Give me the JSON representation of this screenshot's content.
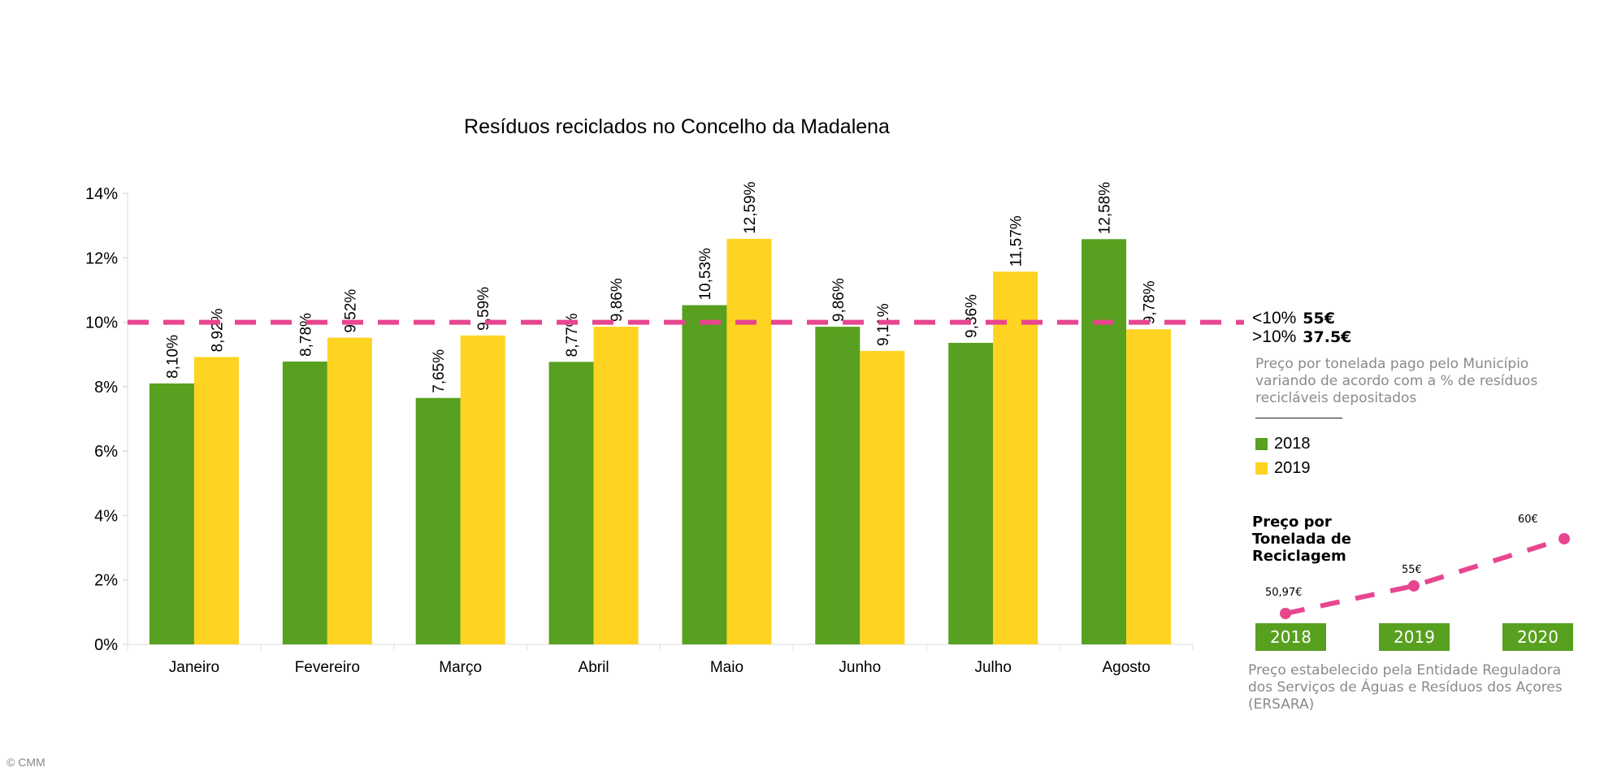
{
  "chart_data": {
    "type": "bar",
    "title": "Resíduos reciclados no Concelho da Madalena",
    "categories": [
      "Janeiro",
      "Fevereiro",
      "Março",
      "Abril",
      "Maio",
      "Junho",
      "Julho",
      "Agosto"
    ],
    "series": [
      {
        "name": "2018",
        "color": "#58a01f",
        "values": [
          8.1,
          8.78,
          7.65,
          8.77,
          10.53,
          9.86,
          9.36,
          12.58
        ],
        "labels": [
          "8,10%",
          "8,78%",
          "7,65%",
          "8,77%",
          "10,53%",
          "9,86%",
          "9,36%",
          "12,58%"
        ]
      },
      {
        "name": "2019",
        "color": "#fed321",
        "values": [
          8.92,
          9.52,
          9.59,
          9.86,
          12.59,
          9.11,
          11.57,
          9.78
        ],
        "labels": [
          "8,92%",
          "9,52%",
          "9,59%",
          "9,86%",
          "12,59%",
          "9,11%",
          "11,57%",
          "9,78%"
        ]
      }
    ],
    "ylim": [
      0,
      14
    ],
    "yticks": [
      0,
      2,
      4,
      6,
      8,
      10,
      12,
      14
    ],
    "ytick_labels": [
      "0%",
      "2%",
      "4%",
      "6%",
      "8%",
      "10%",
      "12%",
      "14%"
    ],
    "threshold": {
      "value": 10,
      "color": "#e8458f",
      "style": "dashed"
    },
    "legend_placement": "right"
  },
  "threshold_note": {
    "below_label": "<10%",
    "below_price": "55€",
    "above_label": ">10%",
    "above_price": "37.5€",
    "description": [
      "Preço por tonelada pago pelo Município",
      "variando de acordo com a % de resíduos",
      "recicláveis depositados"
    ]
  },
  "price_chart": {
    "type": "line",
    "title": [
      "Preço por",
      "Tonelada de",
      "Reciclagem"
    ],
    "color": "#e8458f",
    "years": [
      "2018",
      "2019",
      "2020"
    ],
    "values": [
      50.97,
      55,
      60
    ],
    "labels": [
      "50,97€",
      "55€",
      "60€"
    ],
    "source": [
      "Preço estabelecido pela Entidade Reguladora",
      "dos Serviços de Águas e Resíduos dos Açores",
      "(ERSARA)"
    ]
  },
  "copyright": "© CMM"
}
